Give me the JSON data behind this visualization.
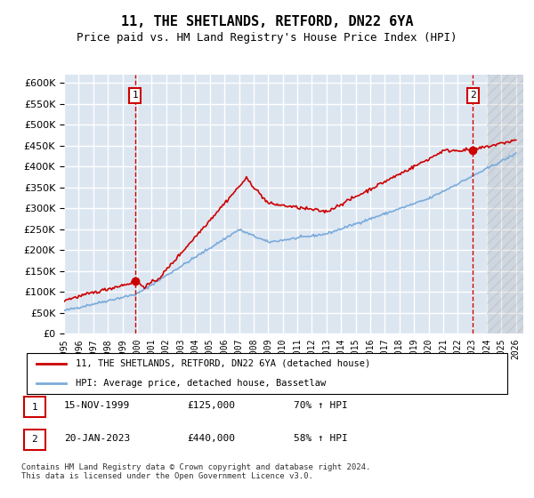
{
  "title": "11, THE SHETLANDS, RETFORD, DN22 6YA",
  "subtitle": "Price paid vs. HM Land Registry's House Price Index (HPI)",
  "ylabel_ticks": [
    0,
    50000,
    100000,
    150000,
    200000,
    250000,
    300000,
    350000,
    400000,
    450000,
    500000,
    550000,
    600000
  ],
  "ylim": [
    0,
    620000
  ],
  "xlim_start": 1995.0,
  "xlim_end": 2026.5,
  "background_color": "#ffffff",
  "plot_bg_color": "#dce6f1",
  "grid_color": "#ffffff",
  "hpi_color": "#7aabdb",
  "price_color": "#cc0000",
  "marker1_date_label": "15-NOV-1999",
  "marker1_price": 125000,
  "marker1_pct": "70% ↑ HPI",
  "marker1_x": 1999.87,
  "marker2_date_label": "20-JAN-2023",
  "marker2_price": 440000,
  "marker2_pct": "58% ↑ HPI",
  "marker2_x": 2023.05,
  "legend_line1": "11, THE SHETLANDS, RETFORD, DN22 6YA (detached house)",
  "legend_line2": "HPI: Average price, detached house, Bassetlaw",
  "table_row1": [
    "1",
    "15-NOV-1999",
    "£125,000",
    "70% ↑ HPI"
  ],
  "table_row2": [
    "2",
    "20-JAN-2023",
    "£440,000",
    "58% ↑ HPI"
  ],
  "footnote": "Contains HM Land Registry data © Crown copyright and database right 2024.\nThis data is licensed under the Open Government Licence v3.0.",
  "x_ticks": [
    1995,
    1996,
    1997,
    1998,
    1999,
    2000,
    2001,
    2002,
    2003,
    2004,
    2005,
    2006,
    2007,
    2008,
    2009,
    2010,
    2011,
    2012,
    2013,
    2014,
    2015,
    2016,
    2017,
    2018,
    2019,
    2020,
    2021,
    2022,
    2023,
    2024,
    2025,
    2026
  ]
}
